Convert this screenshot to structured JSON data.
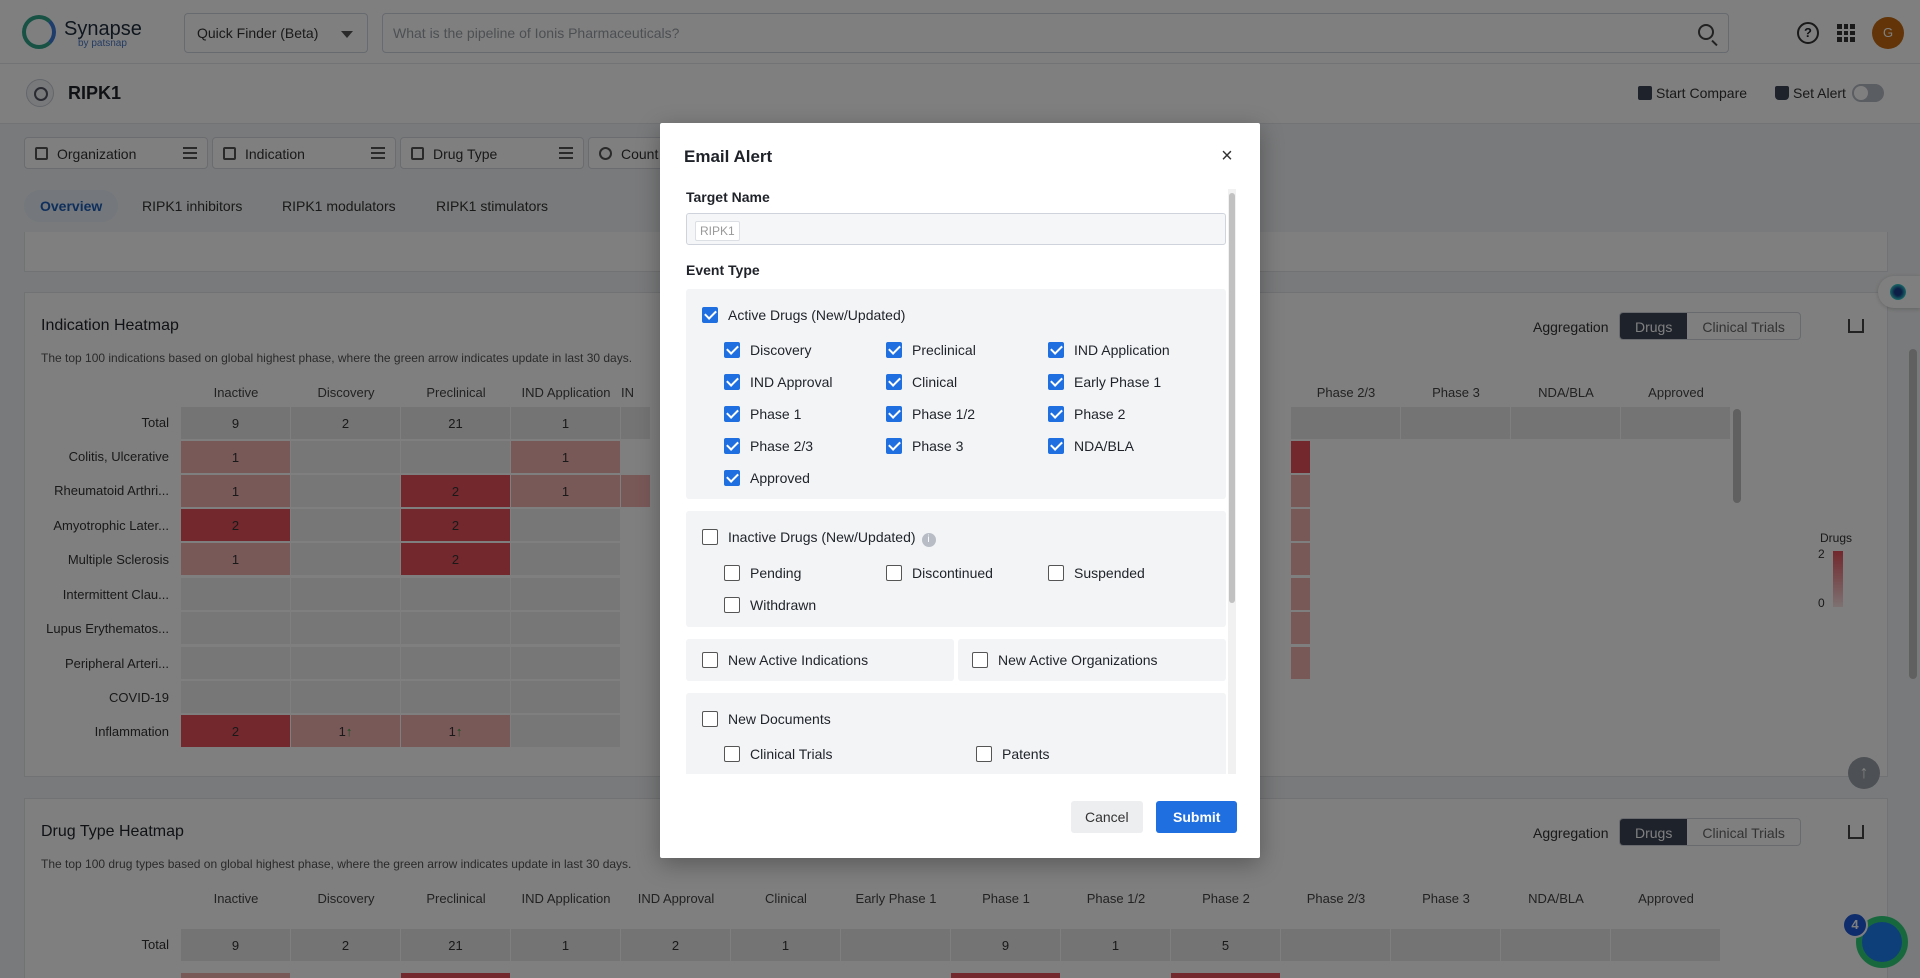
{
  "header": {
    "logo_text": "Synapse",
    "logo_sub": "by patsnap",
    "finder_label": "Quick Finder (Beta)",
    "search_placeholder": "What is the pipeline of Ionis Pharmaceuticals?",
    "avatar_initial": "G"
  },
  "subbar": {
    "title": "RIPK1",
    "start_compare": "Start Compare",
    "set_alert": "Set Alert"
  },
  "filters": [
    "Organization",
    "Indication",
    "Drug Type",
    "Count"
  ],
  "tabs": [
    "Overview",
    "RIPK1 inhibitors",
    "RIPK1 modulators",
    "RIPK1 stimulators"
  ],
  "indication_heatmap": {
    "title": "Indication Heatmap",
    "subtitle": "The top 100 indications based on global highest phase, where the green arrow indicates update in last 30 days.",
    "aggregation": "Aggregation",
    "seg": [
      "Drugs",
      "Clinical Trials"
    ],
    "columns": [
      "Inactive",
      "Discovery",
      "Preclinical",
      "IND Application",
      "IN",
      "Phase 2/3",
      "Phase 3",
      "NDA/BLA",
      "Approved"
    ],
    "rows": [
      "Total",
      "Colitis, Ulcerative",
      "Rheumatoid Arthri...",
      "Amyotrophic Later...",
      "Multiple Sclerosis",
      "Intermittent Clau...",
      "Lupus Erythematos...",
      "Peripheral Arteri...",
      "COVID-19",
      "Inflammation"
    ],
    "values": [
      [
        "9",
        "2",
        "21",
        "1"
      ],
      [
        "1",
        "",
        "",
        "1"
      ],
      [
        "1",
        "",
        "2",
        "1"
      ],
      [
        "2",
        "",
        "2",
        ""
      ],
      [
        "1",
        "",
        "2",
        ""
      ],
      [
        "",
        "",
        "",
        ""
      ],
      [
        "",
        "",
        "",
        ""
      ],
      [
        "",
        "",
        "",
        ""
      ],
      [
        "",
        "",
        "",
        ""
      ],
      [
        "2",
        "1",
        "1",
        ""
      ]
    ],
    "legend_title": "Drugs",
    "legend_max": "2",
    "legend_min": "0"
  },
  "drugtype_heatmap": {
    "title": "Drug Type Heatmap",
    "subtitle": "The top 100 drug types based on global highest phase, where the green arrow indicates update in last 30 days.",
    "aggregation": "Aggregation",
    "seg": [
      "Drugs",
      "Clinical Trials"
    ],
    "columns": [
      "Inactive",
      "Discovery",
      "Preclinical",
      "IND Application",
      "IND Approval",
      "Clinical",
      "Early Phase 1",
      "Phase 1",
      "Phase 1/2",
      "Phase 2",
      "Phase 2/3",
      "Phase 3",
      "NDA/BLA",
      "Approved"
    ],
    "total_label": "Total",
    "totals": [
      "9",
      "2",
      "21",
      "1",
      "2",
      "1",
      "",
      "9",
      "1",
      "5",
      "",
      "",
      "",
      ""
    ]
  },
  "bot_badge": "4",
  "modal": {
    "title": "Email Alert",
    "target_name_label": "Target Name",
    "target_value": "RIPK1",
    "event_type_label": "Event Type",
    "active_drugs": {
      "label": "Active Drugs (New/Updated)",
      "options": [
        "Discovery",
        "Preclinical",
        "IND Application",
        "IND Approval",
        "Clinical",
        "Early Phase 1",
        "Phase 1",
        "Phase 1/2",
        "Phase 2",
        "Phase 2/3",
        "Phase 3",
        "NDA/BLA",
        "Approved"
      ]
    },
    "inactive_drugs": {
      "label": "Inactive Drugs (New/Updated)",
      "options": [
        "Pending",
        "Discontinued",
        "Suspended",
        "Withdrawn"
      ]
    },
    "new_active_indications": "New Active Indications",
    "new_active_organizations": "New Active Organizations",
    "new_documents": {
      "label": "New Documents",
      "options": [
        "Clinical Trials",
        "Patents"
      ]
    },
    "cancel": "Cancel",
    "submit": "Submit"
  },
  "colors": {
    "primary": "#1f6fe0",
    "heat_high": "#e4505a",
    "heat_low": "#f3b0b0",
    "seg_active": "#3b4456"
  }
}
